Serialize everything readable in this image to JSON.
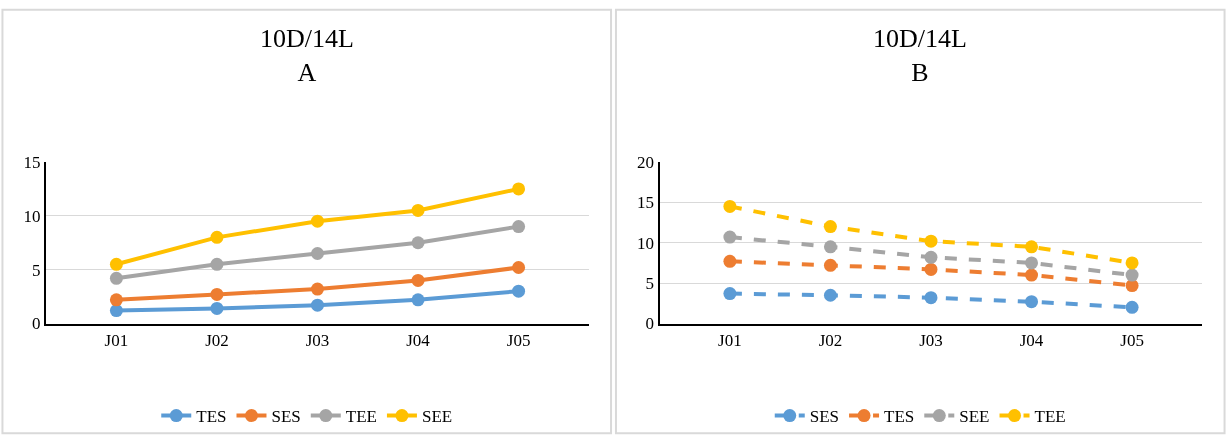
{
  "chart_data": [
    {
      "type": "line",
      "title": "10D/14L\nA",
      "categories": [
        "J01",
        "J02",
        "J03",
        "J04",
        "J05"
      ],
      "ylim": [
        0,
        15
      ],
      "yticks": [
        0,
        5,
        10,
        15
      ],
      "grid": "y",
      "legend": "bottom",
      "marker": "circle",
      "line_style": "solid",
      "series": [
        {
          "name": "TES",
          "color": "#5b9bd5",
          "values": [
            1.2,
            1.4,
            1.7,
            2.2,
            3
          ]
        },
        {
          "name": "SES",
          "color": "#ed7d31",
          "values": [
            2.2,
            2.7,
            3.2,
            4,
            5.2
          ]
        },
        {
          "name": "TEE",
          "color": "#a5a5a5",
          "values": [
            4.2,
            5.5,
            6.5,
            7.5,
            9
          ]
        },
        {
          "name": "SEE",
          "color": "#ffc000",
          "values": [
            5.5,
            8,
            9.5,
            10.5,
            12.5
          ]
        }
      ]
    },
    {
      "type": "line",
      "title": "10D/14L\nB",
      "categories": [
        "J01",
        "J02",
        "J03",
        "J04",
        "J05"
      ],
      "ylim": [
        0,
        20
      ],
      "yticks": [
        0,
        5,
        10,
        15,
        20
      ],
      "grid": "y",
      "legend": "bottom",
      "marker": "circle",
      "line_style": "dashed",
      "series": [
        {
          "name": "SES",
          "color": "#5b9bd5",
          "values": [
            3.7,
            3.5,
            3.2,
            2.7,
            2
          ]
        },
        {
          "name": "TES",
          "color": "#ed7d31",
          "values": [
            7.7,
            7.2,
            6.7,
            6,
            4.7
          ]
        },
        {
          "name": "SEE",
          "color": "#a5a5a5",
          "values": [
            10.7,
            9.5,
            8.2,
            7.5,
            6
          ]
        },
        {
          "name": "TEE",
          "color": "#ffc000",
          "values": [
            14.5,
            12,
            10.2,
            9.5,
            7.5
          ]
        }
      ]
    }
  ]
}
